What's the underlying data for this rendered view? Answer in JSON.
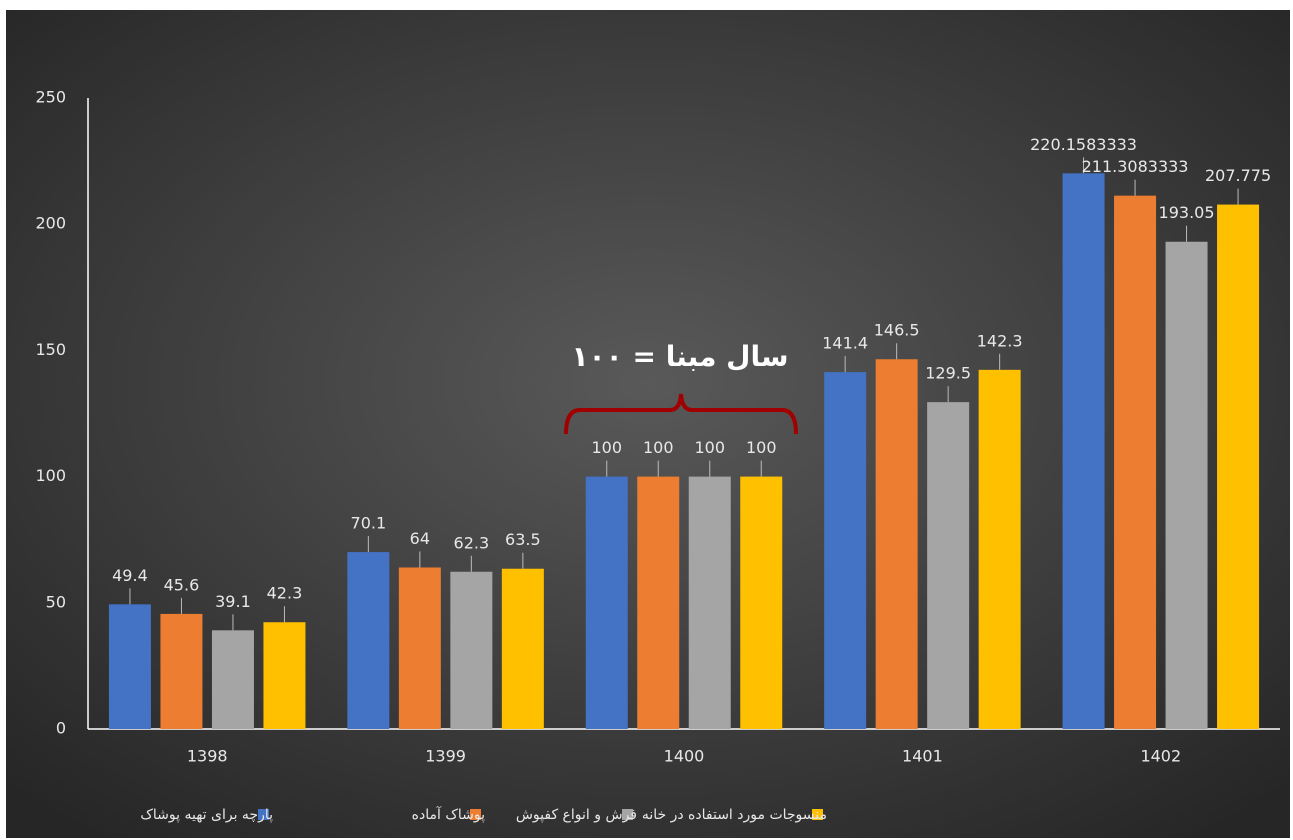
{
  "chart_data": {
    "type": "bar",
    "categories": [
      "1398",
      "1399",
      "1400",
      "1401",
      "1402"
    ],
    "series": [
      {
        "name": "پارچه برای تهیه پوشاک",
        "color": "#4472c4",
        "values": [
          49.4,
          70.1,
          100,
          141.4,
          220.1583333
        ]
      },
      {
        "name": "پوشاک آماده",
        "color": "#ed7d31",
        "values": [
          45.6,
          64,
          100,
          146.5,
          211.3083333
        ]
      },
      {
        "name": "فرش و انواع کفپوش",
        "color": "#a5a5a5",
        "values": [
          39.1,
          62.3,
          100,
          129.5,
          193.05
        ]
      },
      {
        "name": "منسوجات مورد استفاده در خانه",
        "color": "#ffc000",
        "values": [
          42.3,
          63.5,
          100,
          142.3,
          207.775
        ]
      }
    ],
    "annotation": "سال مبنا = ۱۰۰",
    "ylim": [
      0,
      250
    ],
    "yticks": [
      0,
      50,
      100,
      150,
      200,
      250
    ],
    "grid": false,
    "legend": "bottom"
  }
}
